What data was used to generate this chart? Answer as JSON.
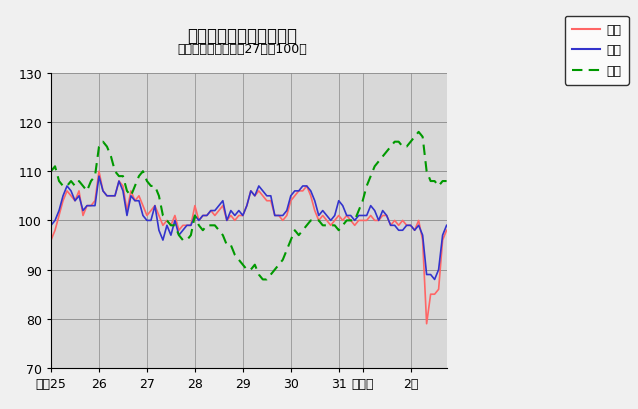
{
  "title": "鳥取県鉱工業指数の推移",
  "subtitle": "（季節調整済、平成27年＝100）",
  "ylim": [
    70,
    130
  ],
  "yticks": [
    70,
    80,
    90,
    100,
    110,
    120,
    130
  ],
  "legend_labels": [
    "生産",
    "出荷",
    "在庫"
  ],
  "legend_colors": [
    "#FF6666",
    "#3333CC",
    "#009900"
  ],
  "x_tick_positions": [
    0,
    12,
    24,
    36,
    48,
    60,
    72,
    78,
    90
  ],
  "x_labels": [
    "平成25",
    "26",
    "27",
    "28",
    "29",
    "30",
    "31",
    "令和元",
    "2年"
  ],
  "plot_bg": "#D8D8D8",
  "fig_bg": "#F0F0F0",
  "production": [
    96,
    98,
    101,
    104,
    106,
    105,
    104,
    106,
    101,
    103,
    103,
    104,
    110,
    106,
    105,
    105,
    105,
    108,
    107,
    102,
    106,
    104,
    105,
    103,
    101,
    102,
    103,
    101,
    99,
    100,
    99,
    101,
    98,
    99,
    99,
    99,
    103,
    100,
    101,
    101,
    102,
    101,
    102,
    103,
    100,
    101,
    100,
    101,
    101,
    103,
    106,
    105,
    106,
    105,
    104,
    104,
    101,
    101,
    100,
    101,
    104,
    105,
    106,
    106,
    107,
    105,
    102,
    100,
    101,
    100,
    99,
    100,
    101,
    100,
    101,
    100,
    99,
    100,
    100,
    100,
    101,
    100,
    100,
    101,
    101,
    99,
    100,
    99,
    100,
    99,
    99,
    98,
    100,
    96,
    79,
    85,
    85,
    86,
    96,
    98
  ],
  "shipment": [
    99,
    100,
    102,
    105,
    107,
    106,
    104,
    105,
    102,
    103,
    103,
    103,
    109,
    106,
    105,
    105,
    105,
    108,
    106,
    101,
    105,
    104,
    104,
    101,
    100,
    100,
    103,
    98,
    96,
    99,
    97,
    100,
    97,
    98,
    99,
    99,
    101,
    100,
    101,
    101,
    102,
    102,
    103,
    104,
    100,
    102,
    101,
    102,
    101,
    103,
    106,
    105,
    107,
    106,
    105,
    105,
    101,
    101,
    101,
    102,
    105,
    106,
    106,
    107,
    107,
    106,
    104,
    101,
    102,
    101,
    100,
    101,
    104,
    103,
    101,
    101,
    100,
    101,
    101,
    101,
    103,
    102,
    100,
    102,
    101,
    99,
    99,
    98,
    98,
    99,
    99,
    98,
    99,
    97,
    89,
    89,
    88,
    90,
    97,
    99
  ],
  "inventory": [
    110,
    111,
    108,
    107,
    107,
    108,
    107,
    108,
    107,
    106,
    108,
    109,
    115,
    116,
    115,
    113,
    110,
    109,
    109,
    106,
    105,
    107,
    109,
    110,
    108,
    107,
    107,
    105,
    101,
    100,
    99,
    99,
    97,
    96,
    96,
    97,
    101,
    99,
    98,
    99,
    99,
    99,
    98,
    97,
    95,
    95,
    93,
    92,
    91,
    90,
    90,
    91,
    89,
    88,
    88,
    89,
    90,
    91,
    92,
    94,
    96,
    98,
    97,
    98,
    99,
    100,
    100,
    100,
    99,
    99,
    99,
    99,
    98,
    99,
    100,
    100,
    100,
    102,
    104,
    107,
    109,
    111,
    112,
    113,
    114,
    115,
    116,
    116,
    115,
    115,
    116,
    117,
    118,
    117,
    110,
    108,
    108,
    107,
    108,
    108
  ]
}
